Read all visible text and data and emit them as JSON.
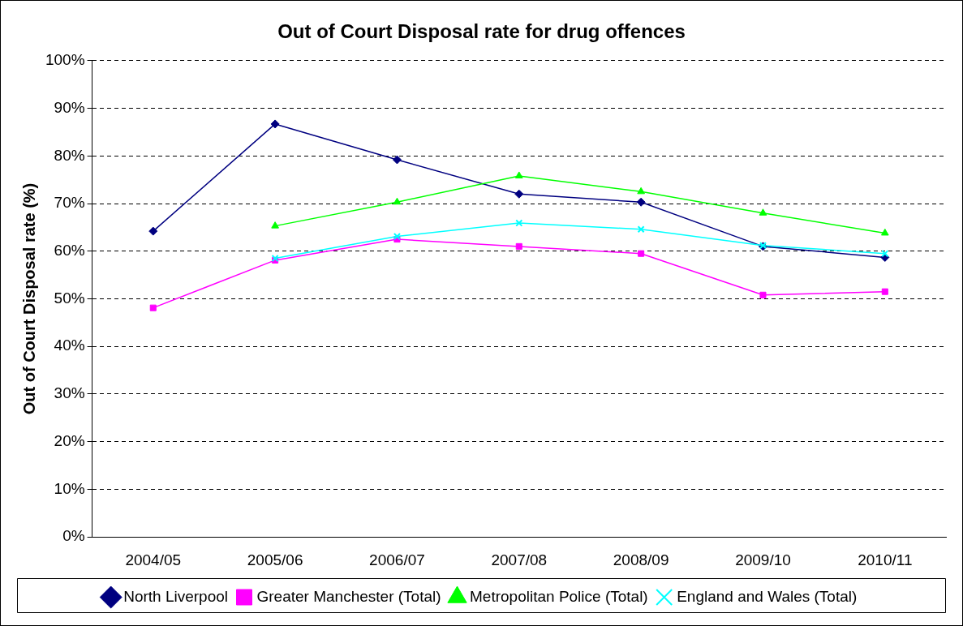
{
  "chart_data": {
    "type": "line",
    "title": "Out of Court Disposal rate for drug offences",
    "ylabel": "Out of Court Disposal rate (%)",
    "categories": [
      "2004/05",
      "2005/06",
      "2006/07",
      "2007/08",
      "2008/09",
      "2009/10",
      "2010/11"
    ],
    "series": [
      {
        "name": "North Liverpool",
        "color": "#000080",
        "marker": "diamond",
        "values": [
          64.2,
          86.7,
          79.2,
          72.0,
          70.3,
          61.0,
          58.7
        ]
      },
      {
        "name": "Greater Manchester (Total)",
        "color": "#ff00ff",
        "marker": "square",
        "values": [
          48.1,
          58.1,
          62.5,
          61.0,
          59.5,
          50.8,
          51.5
        ]
      },
      {
        "name": "Metropolitan Police (Total)",
        "color": "#00ff00",
        "marker": "triangle",
        "values": [
          null,
          65.3,
          70.3,
          75.8,
          72.5,
          68.0,
          63.8
        ]
      },
      {
        "name": "England and Wales (Total)",
        "color": "#00ffff",
        "marker": "cross",
        "values": [
          null,
          58.5,
          63.1,
          65.9,
          64.6,
          61.2,
          59.5
        ]
      }
    ],
    "ylim": [
      0,
      100
    ],
    "yticks": [
      {
        "value": 0,
        "label": "0%"
      },
      {
        "value": 10,
        "label": "10%"
      },
      {
        "value": 20,
        "label": "20%"
      },
      {
        "value": 30,
        "label": "30%"
      },
      {
        "value": 40,
        "label": "40%"
      },
      {
        "value": 50,
        "label": "50%"
      },
      {
        "value": 60,
        "label": "60%"
      },
      {
        "value": 70,
        "label": "70%"
      },
      {
        "value": 80,
        "label": "80%"
      },
      {
        "value": 90,
        "label": "90%"
      },
      {
        "value": 100,
        "label": "100%"
      }
    ],
    "grid": "y",
    "legend": "bottom",
    "line_style": "solid"
  }
}
